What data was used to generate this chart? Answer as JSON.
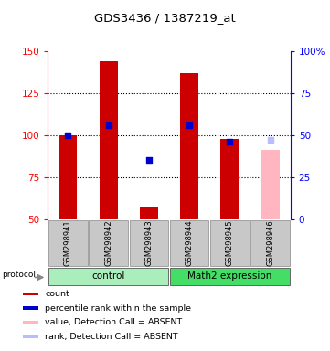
{
  "title": "GDS3436 / 1387219_at",
  "samples": [
    "GSM298941",
    "GSM298942",
    "GSM298943",
    "GSM298944",
    "GSM298945",
    "GSM298946"
  ],
  "red_values": [
    100,
    144,
    57,
    137,
    98,
    null
  ],
  "blue_values": [
    100,
    106,
    85,
    106,
    96,
    null
  ],
  "pink_value": 91,
  "lavender_value": 97,
  "absent_index": 5,
  "ylim": [
    50,
    150
  ],
  "yticks_left": [
    50,
    75,
    100,
    125,
    150
  ],
  "yright_labels": [
    "0",
    "25",
    "50",
    "75",
    "100%"
  ],
  "bar_color": "#CC0000",
  "blue_color": "#0000CC",
  "pink_color": "#FFB6C1",
  "lavender_color": "#BBBBFF",
  "bg_color": "#C8C8C8",
  "ctrl_color": "#AAEEBB",
  "math_color": "#44DD66",
  "legend_items": [
    {
      "color": "#CC0000",
      "label": "count"
    },
    {
      "color": "#0000CC",
      "label": "percentile rank within the sample"
    },
    {
      "color": "#FFB6C1",
      "label": "value, Detection Call = ABSENT"
    },
    {
      "color": "#BBBBFF",
      "label": "rank, Detection Call = ABSENT"
    }
  ]
}
